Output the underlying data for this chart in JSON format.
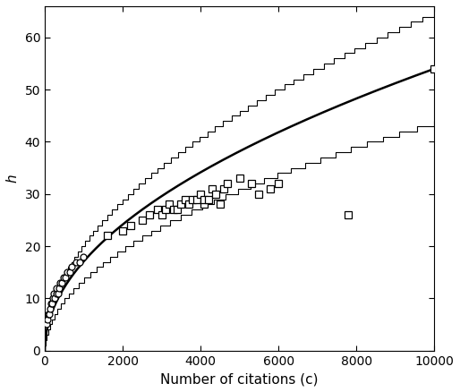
{
  "title": "",
  "xlabel": "Number of citations (c)",
  "ylabel": "h",
  "xlim": [
    0,
    10000
  ],
  "ylim": [
    0,
    66
  ],
  "xticks": [
    0,
    2000,
    4000,
    6000,
    8000,
    10000
  ],
  "yticks": [
    0,
    10,
    20,
    30,
    40,
    50,
    60
  ],
  "circle_data": [
    [
      50,
      5
    ],
    [
      70,
      6
    ],
    [
      90,
      7
    ],
    [
      110,
      7
    ],
    [
      130,
      8
    ],
    [
      160,
      9
    ],
    [
      180,
      9
    ],
    [
      200,
      10
    ],
    [
      230,
      11
    ],
    [
      260,
      10
    ],
    [
      290,
      11
    ],
    [
      310,
      12
    ],
    [
      340,
      11
    ],
    [
      370,
      12
    ],
    [
      400,
      13
    ],
    [
      440,
      13
    ],
    [
      480,
      14
    ],
    [
      530,
      14
    ],
    [
      580,
      15
    ],
    [
      640,
      15
    ],
    [
      700,
      16
    ],
    [
      800,
      17
    ],
    [
      900,
      17
    ],
    [
      1000,
      18
    ]
  ],
  "square_data": [
    [
      1600,
      22
    ],
    [
      2000,
      23
    ],
    [
      2200,
      24
    ],
    [
      2500,
      25
    ],
    [
      2700,
      26
    ],
    [
      2900,
      27
    ],
    [
      3000,
      26
    ],
    [
      3100,
      27
    ],
    [
      3200,
      28
    ],
    [
      3300,
      27
    ],
    [
      3400,
      27
    ],
    [
      3500,
      28
    ],
    [
      3600,
      29
    ],
    [
      3700,
      28
    ],
    [
      3800,
      29
    ],
    [
      3900,
      29
    ],
    [
      4000,
      30
    ],
    [
      4100,
      28
    ],
    [
      4100,
      29
    ],
    [
      4200,
      29
    ],
    [
      4300,
      31
    ],
    [
      4400,
      30
    ],
    [
      4500,
      28
    ],
    [
      4600,
      31
    ],
    [
      4700,
      32
    ],
    [
      5000,
      33
    ],
    [
      5300,
      32
    ],
    [
      5500,
      30
    ],
    [
      5800,
      31
    ],
    [
      6000,
      32
    ],
    [
      7800,
      26
    ],
    [
      10000,
      54
    ]
  ],
  "a_upper": 0.65,
  "a_lower": 0.44,
  "a_smooth": 0.54,
  "figsize": [
    5.14,
    4.38
  ],
  "dpi": 100,
  "bg_color": "#ffffff",
  "line_color": "#000000",
  "marker_color": "#000000"
}
